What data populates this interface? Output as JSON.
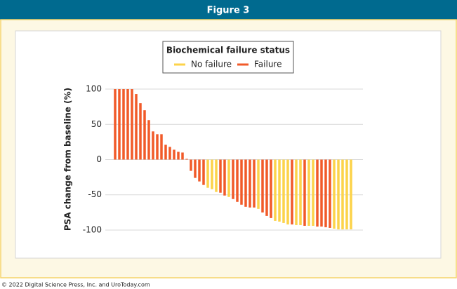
{
  "header": {
    "title": "Figure 3"
  },
  "footer": "© 2022 Digital Science Press, Inc. and UroToday.com",
  "chart_data": {
    "type": "bar",
    "ylabel": "PSA change from baseline (%)",
    "legend_title": "Biochemical failure status",
    "legend": "top",
    "grid": true,
    "ylim": [
      -107,
      107
    ],
    "yticks": [
      -100,
      -50,
      0,
      50,
      100
    ],
    "categories": [
      null,
      null,
      null,
      null,
      null,
      null,
      null,
      null,
      null,
      null,
      null,
      null,
      null,
      null,
      null,
      null,
      null,
      null,
      null,
      null,
      null,
      null,
      null,
      null,
      null,
      null,
      null,
      null,
      null,
      null,
      null,
      null,
      null,
      null,
      null,
      null,
      null,
      null,
      null,
      null,
      null,
      null,
      null,
      null,
      null,
      null,
      null,
      null,
      null,
      null,
      null,
      null,
      null,
      null,
      null,
      null,
      null
    ],
    "series": [
      {
        "name": "No failure",
        "color": "#fcd34a",
        "values": [
          null,
          null,
          null,
          null,
          null,
          null,
          null,
          null,
          null,
          null,
          null,
          null,
          null,
          null,
          null,
          null,
          null,
          null,
          null,
          null,
          null,
          null,
          -40,
          -42,
          -46,
          null,
          null,
          -53,
          null,
          null,
          null,
          null,
          null,
          null,
          -70,
          null,
          null,
          null,
          -87,
          -88,
          -90,
          -92,
          null,
          -93,
          -93,
          null,
          -94,
          -94,
          null,
          null,
          null,
          null,
          -98,
          -99,
          -99,
          -99,
          -99
        ]
      },
      {
        "name": "Failure",
        "color": "#f15a29",
        "values": [
          100,
          100,
          100,
          100,
          100,
          93,
          80,
          70,
          56,
          40,
          36,
          36,
          21,
          18,
          14,
          11,
          10,
          1,
          -16,
          -26,
          -31,
          -36,
          null,
          null,
          null,
          -47,
          -51,
          null,
          -56,
          -60,
          -64,
          -67,
          -68,
          -68,
          null,
          -75,
          -80,
          -83,
          null,
          null,
          null,
          null,
          -92,
          null,
          null,
          -94,
          null,
          null,
          -95,
          -95,
          -96,
          -97,
          null,
          null,
          null,
          null,
          null
        ]
      }
    ]
  }
}
